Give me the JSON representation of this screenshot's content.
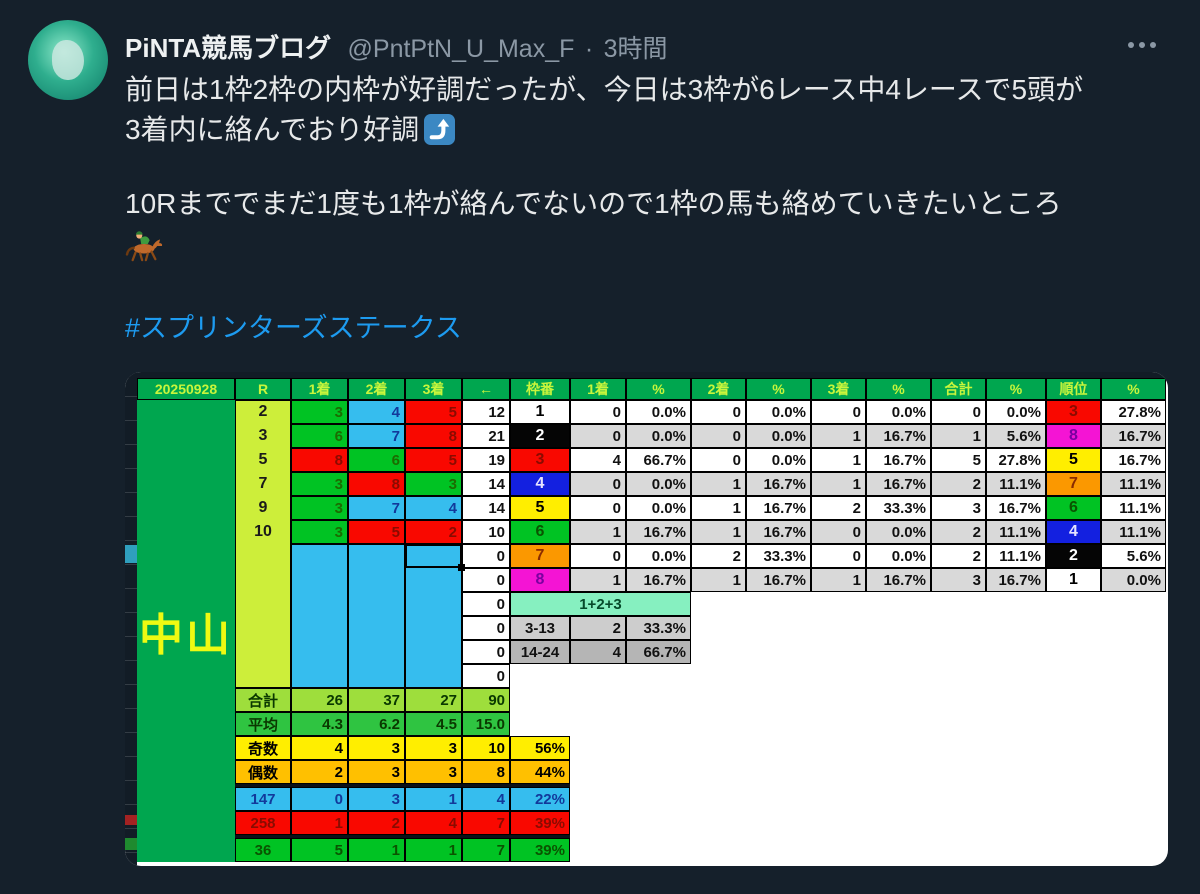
{
  "tweet": {
    "display_name": "PiNTA競馬ブログ",
    "handle": "@PntPtN_U_Max_F",
    "separator": "·",
    "timestamp": "3時間",
    "body_line1": "前日は1枠2枠の内枠が好調だったが、今日は3枠が6レース中4レースで5頭が",
    "body_line2": "3着内に絡んでおり好調",
    "body_line3": "10Rまででまだ1度も1枠が絡んでないので1枠の馬も絡めていきたいところ",
    "hashtag": "#スプリンターズステークス",
    "icons": {
      "more": "more-horizontal-icon",
      "arrow": "arrow-curving-up-emoji-icon",
      "horse": "horse-racing-emoji-icon"
    }
  },
  "sheet": {
    "date": "20250928",
    "venue": "中山",
    "header_labels": [
      "20250928",
      "R",
      "1着",
      "2着",
      "3着",
      "←",
      "枠番",
      "1着",
      "%",
      "2着",
      "%",
      "3着",
      "%",
      "合計",
      "%",
      "順位",
      "%"
    ],
    "race_rows": [
      {
        "r": "2",
        "cells": [
          [
            "3",
            "green"
          ],
          [
            "4",
            "cyan"
          ],
          [
            "5",
            "red"
          ]
        ],
        "count": "12"
      },
      {
        "r": "3",
        "cells": [
          [
            "6",
            "green"
          ],
          [
            "7",
            "cyan"
          ],
          [
            "8",
            "red"
          ]
        ],
        "count": "21"
      },
      {
        "r": "5",
        "cells": [
          [
            "8",
            "red"
          ],
          [
            "6",
            "green"
          ],
          [
            "5",
            "red"
          ]
        ],
        "count": "19"
      },
      {
        "r": "7",
        "cells": [
          [
            "3",
            "green"
          ],
          [
            "8",
            "red"
          ],
          [
            "3",
            "green"
          ]
        ],
        "count": "14"
      },
      {
        "r": "9",
        "cells": [
          [
            "3",
            "green"
          ],
          [
            "7",
            "cyan"
          ],
          [
            "4",
            "cyan"
          ]
        ],
        "count": "14"
      },
      {
        "r": "10",
        "cells": [
          [
            "3",
            "green"
          ],
          [
            "5",
            "red"
          ],
          [
            "2",
            "red"
          ]
        ],
        "count": "10"
      }
    ],
    "zero_rows": [
      "0",
      "0",
      "0",
      "0",
      "0",
      "0"
    ],
    "waku_rows": [
      {
        "waku": "1",
        "color": "white",
        "stats": [
          "0",
          "0.0%",
          "0",
          "0.0%",
          "0",
          "0.0%",
          "0",
          "0.0%"
        ],
        "rank": "3",
        "rank_color": "red",
        "rank_pct": "27.8%"
      },
      {
        "waku": "2",
        "color": "black",
        "stats": [
          "0",
          "0.0%",
          "0",
          "0.0%",
          "1",
          "16.7%",
          "1",
          "5.6%"
        ],
        "rank": "8",
        "rank_color": "magenta",
        "rank_pct": "16.7%"
      },
      {
        "waku": "3",
        "color": "red",
        "stats": [
          "4",
          "66.7%",
          "0",
          "0.0%",
          "1",
          "16.7%",
          "5",
          "27.8%"
        ],
        "rank": "5",
        "rank_color": "yellow",
        "rank_pct": "16.7%"
      },
      {
        "waku": "4",
        "color": "blue",
        "stats": [
          "0",
          "0.0%",
          "1",
          "16.7%",
          "1",
          "16.7%",
          "2",
          "11.1%"
        ],
        "rank": "7",
        "rank_color": "orange",
        "rank_pct": "11.1%"
      },
      {
        "waku": "5",
        "color": "yellow",
        "stats": [
          "0",
          "0.0%",
          "1",
          "16.7%",
          "2",
          "33.3%",
          "3",
          "16.7%"
        ],
        "rank": "6",
        "rank_color": "green",
        "rank_pct": "11.1%"
      },
      {
        "waku": "6",
        "color": "green",
        "stats": [
          "1",
          "16.7%",
          "1",
          "16.7%",
          "0",
          "0.0%",
          "2",
          "11.1%"
        ],
        "rank": "4",
        "rank_color": "blue",
        "rank_pct": "11.1%"
      },
      {
        "waku": "7",
        "color": "orange",
        "stats": [
          "0",
          "0.0%",
          "2",
          "33.3%",
          "0",
          "0.0%",
          "2",
          "11.1%"
        ],
        "rank": "2",
        "rank_color": "black",
        "rank_pct": "5.6%"
      },
      {
        "waku": "8",
        "color": "magenta",
        "stats": [
          "1",
          "16.7%",
          "1",
          "16.7%",
          "1",
          "16.7%",
          "3",
          "16.7%"
        ],
        "rank": "1",
        "rank_color": "white",
        "rank_pct": "0.0%"
      }
    ],
    "combo_label": "1+2+3",
    "range_rows": [
      {
        "label": "3-13",
        "count": "2",
        "pct": "33.3%"
      },
      {
        "label": "14-24",
        "count": "4",
        "pct": "66.7%"
      }
    ],
    "summary_rows": [
      {
        "label": "合計",
        "values": [
          "26",
          "37",
          "27"
        ],
        "count": "90",
        "pct": "",
        "color": "sum_green"
      },
      {
        "label": "平均",
        "values": [
          "4.3",
          "6.2",
          "4.5"
        ],
        "count": "15.0",
        "pct": "",
        "color": "avg_green"
      },
      {
        "label": "奇数",
        "values": [
          "4",
          "3",
          "3"
        ],
        "count": "10",
        "pct": "56%",
        "color": "yellow"
      },
      {
        "label": "偶数",
        "values": [
          "2",
          "3",
          "3"
        ],
        "count": "8",
        "pct": "44%",
        "color": "gold"
      },
      {
        "label": "147",
        "values": [
          "0",
          "3",
          "1"
        ],
        "count": "4",
        "pct": "22%",
        "color": "cyan"
      },
      {
        "label": "258",
        "values": [
          "1",
          "2",
          "4"
        ],
        "count": "7",
        "pct": "39%",
        "color": "red"
      },
      {
        "label": "36",
        "values": [
          "5",
          "1",
          "1"
        ],
        "count": "7",
        "pct": "39%",
        "color": "green"
      }
    ],
    "colors": {
      "background": "#15202b",
      "text": "#e7e9ea",
      "muted": "#8b98a5",
      "link": "#1d9bf0",
      "header_green": "#00a64f",
      "header_text": "#c8f53c",
      "chartreuse": "#cdee3a",
      "green": "#00c323",
      "cyan": "#36bdee",
      "red": "#f90800",
      "blue": "#1320e0",
      "yellow": "#ffee00",
      "orange": "#fb9800",
      "magenta": "#f414d4",
      "white": "#ffffff",
      "black": "#050505",
      "gold": "#ffc000",
      "sum_green": "#9ede3c",
      "avg_green": "#2fc441",
      "mint": "#86f0c0",
      "gray_light": "#cdcdcd",
      "gray_dark": "#b5b5b5",
      "stripe": "#d9d9d9"
    }
  }
}
